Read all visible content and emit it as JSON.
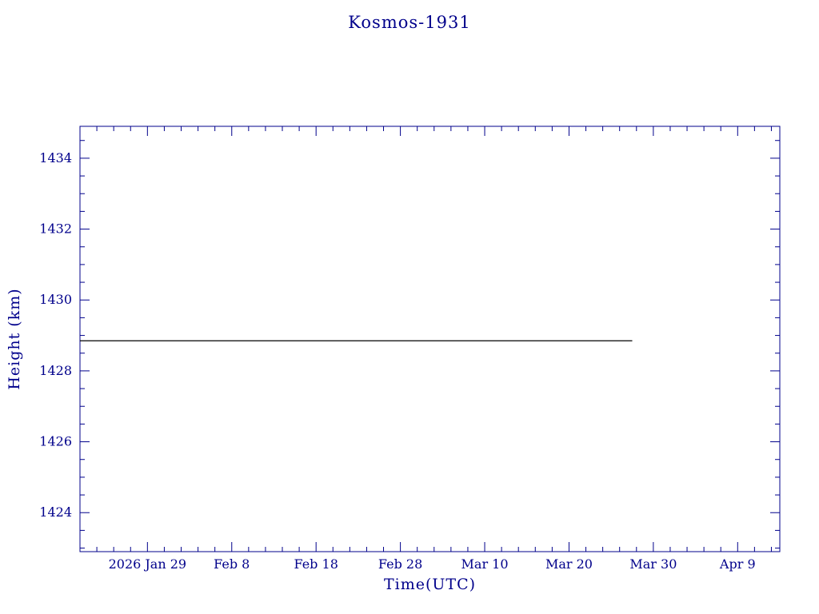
{
  "chart_data": {
    "type": "line",
    "title": "Kosmos-1931",
    "xlabel": "Time(UTC)",
    "ylabel": "Height (km)",
    "x_axis": {
      "unit": "days (day 0 = 2026 Jan 21, left edge of plot)",
      "range_days": [
        0,
        83
      ],
      "major_ticks": [
        {
          "day": 8,
          "label": "2026 Jan 29"
        },
        {
          "day": 18,
          "label": "Feb 8"
        },
        {
          "day": 28,
          "label": "Feb 18"
        },
        {
          "day": 38,
          "label": "Feb 28"
        },
        {
          "day": 48,
          "label": "Mar 10"
        },
        {
          "day": 58,
          "label": "Mar 20"
        },
        {
          "day": 68,
          "label": "Mar 30"
        },
        {
          "day": 78,
          "label": "Apr 9"
        }
      ],
      "minor_tick_step_days": 2
    },
    "y_axis": {
      "range_km": [
        1422.9,
        1434.9
      ],
      "major_ticks": [
        1424,
        1426,
        1428,
        1430,
        1432,
        1434
      ],
      "minor_tick_step_km": 0.5
    },
    "series": [
      {
        "name": "satellite-height",
        "color": "#000000",
        "points_day_km": [
          [
            0,
            1428.85
          ],
          [
            65.5,
            1428.85
          ]
        ]
      }
    ],
    "grid": "off",
    "legend": "none",
    "colors": {
      "axis": "#00008b",
      "text": "#00008b",
      "line": "#000000",
      "background": "#ffffff"
    }
  }
}
